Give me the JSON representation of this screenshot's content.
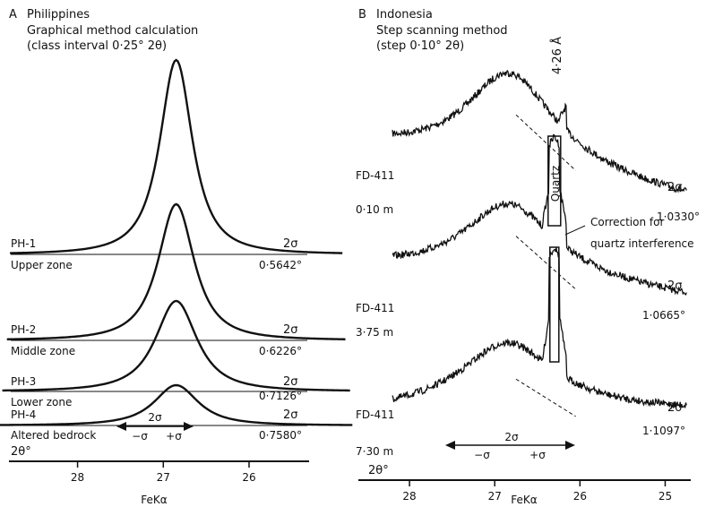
{
  "panelA": {
    "letter": "A",
    "title": "Philippines",
    "method": "Graphical method calculation",
    "interval": "(class interval 0·25° 2θ)",
    "axis_symbol": "2θ°",
    "ticks": [
      "28",
      "27",
      "26"
    ],
    "xlabel": "FeKα",
    "sigma_label": "2σ",
    "minus_sigma": "−σ",
    "plus_sigma": "+σ",
    "samples": [
      {
        "code": "PH-1",
        "zone": "Upper zone",
        "sigma": "2σ",
        "width": "0·5642°"
      },
      {
        "code": "PH-2",
        "zone": "Middle zone",
        "sigma": "2σ",
        "width": "0·6226°"
      },
      {
        "code": "PH-3",
        "zone": "Lower zone",
        "sigma": "2σ",
        "width": "0·7126°"
      },
      {
        "code": "PH-4",
        "zone": "Altered bedrock",
        "sigma": "2σ",
        "width": "0·7580°"
      }
    ]
  },
  "panelB": {
    "letter": "B",
    "title": "Indonesia",
    "method": "Step scanning method",
    "interval": "(step 0·10° 2θ)",
    "axis_symbol": "2θ°",
    "ticks": [
      "28",
      "27",
      "26",
      "25"
    ],
    "xlabel": "FeKα",
    "quartz_line": "4·26 Å",
    "quartz_label": "Quartz",
    "correction_label_1": "Correction for",
    "correction_label_2": "quartz interference",
    "sigma_label": "2σ",
    "minus_sigma": "−σ",
    "plus_sigma": "+σ",
    "samples": [
      {
        "code": "FD-411",
        "depth": "0·10 m",
        "sigma": "2σ",
        "width": "1·0330°"
      },
      {
        "code": "FD-411",
        "depth": "3·75 m",
        "sigma": "2σ",
        "width": "1·0665°"
      },
      {
        "code": "FD-411",
        "depth": "7·30 m",
        "sigma": "2σ",
        "width": "1·1097°"
      }
    ]
  },
  "chart_data": [
    {
      "type": "line",
      "panel": "A",
      "title": "Philippines",
      "xlabel": "FeKα",
      "x_axis_label": "2θ°",
      "x_reversed": true,
      "xlim": [
        28.8,
        25.3
      ],
      "xticks": [
        28,
        27,
        26
      ],
      "grid": false,
      "series": [
        {
          "name": "PH-1",
          "peak_2theta": 26.85,
          "fwhm_2theta": 0.5642,
          "relative_height": 1.0
        },
        {
          "name": "PH-2",
          "peak_2theta": 26.85,
          "fwhm_2theta": 0.6226,
          "relative_height": 0.73
        },
        {
          "name": "PH-3",
          "peak_2theta": 26.85,
          "fwhm_2theta": 0.7126,
          "relative_height": 0.37
        },
        {
          "name": "PH-4",
          "peak_2theta": 26.85,
          "fwhm_2theta": 0.758,
          "relative_height": 0.18
        }
      ]
    },
    {
      "type": "line",
      "panel": "B",
      "title": "Indonesia",
      "xlabel": "FeKα",
      "x_axis_label": "2θ°",
      "x_reversed": true,
      "xlim": [
        28.6,
        24.7
      ],
      "xticks": [
        28,
        27,
        26,
        25
      ],
      "grid": false,
      "quartz_peak_2theta": 26.3,
      "series": [
        {
          "name": "FD-411 0·10 m",
          "peak_2theta": 26.85,
          "fwhm_2theta": 1.033,
          "quartz_peak": true
        },
        {
          "name": "FD-411 3·75 m",
          "peak_2theta": 26.85,
          "fwhm_2theta": 1.0665,
          "quartz_peak": true
        },
        {
          "name": "FD-411 7·30 m",
          "peak_2theta": 26.85,
          "fwhm_2theta": 1.1097,
          "quartz_peak": true
        }
      ]
    }
  ]
}
